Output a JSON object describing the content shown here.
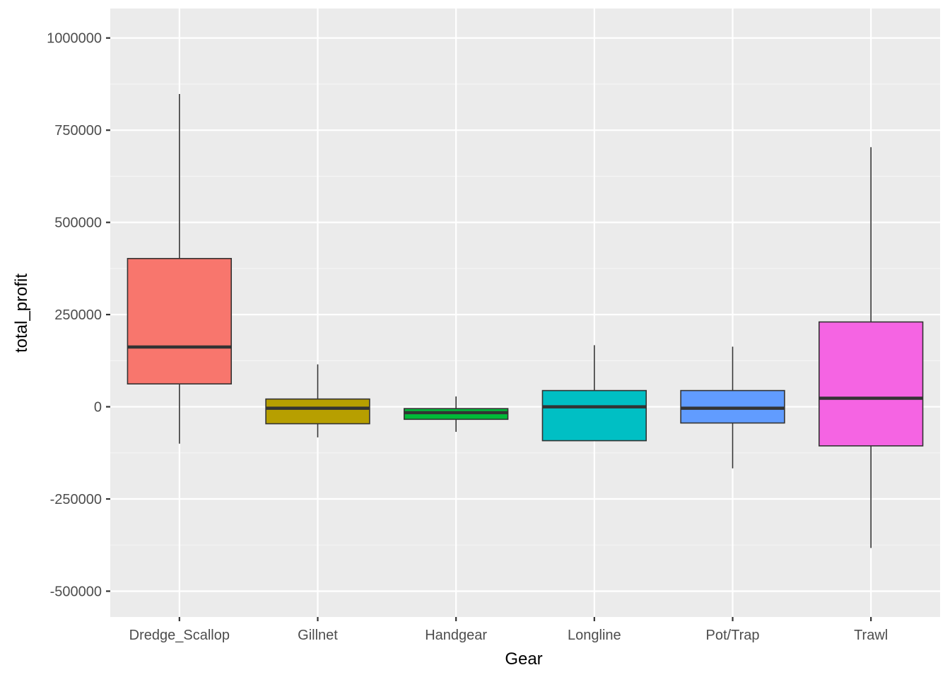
{
  "chart_data": {
    "type": "boxplot",
    "xlabel": "Gear",
    "ylabel": "total_profit",
    "ylim": [
      -570000,
      1080000
    ],
    "y_ticks": [
      -500000,
      -250000,
      0,
      250000,
      500000,
      750000,
      1000000
    ],
    "y_tick_labels": [
      "-500000",
      "-250000",
      "0",
      "250000",
      "500000",
      "750000",
      "1000000"
    ],
    "grid": true,
    "legend": "none",
    "categories": [
      "Dredge_Scallop",
      "Gillnet",
      "Handgear",
      "Longline",
      "Pot/Trap",
      "Trawl"
    ],
    "boxes": [
      {
        "category": "Dredge_Scallop",
        "whisker_low": -100000,
        "q1": 62000,
        "median": 162000,
        "q3": 402000,
        "whisker_high": 848000,
        "color": "#F8766D"
      },
      {
        "category": "Gillnet",
        "whisker_low": -83000,
        "q1": -46000,
        "median": -4000,
        "q3": 21000,
        "whisker_high": 115000,
        "color": "#B79F00"
      },
      {
        "category": "Handgear",
        "whisker_low": -68000,
        "q1": -34000,
        "median": -16000,
        "q3": -5000,
        "whisker_high": 28000,
        "color": "#00BA38"
      },
      {
        "category": "Longline",
        "whisker_low": -92000,
        "q1": -92000,
        "median": 0,
        "q3": 44000,
        "whisker_high": 167000,
        "color": "#00BFC4"
      },
      {
        "category": "Pot/Trap",
        "whisker_low": -167000,
        "q1": -44000,
        "median": -4000,
        "q3": 44000,
        "whisker_high": 163000,
        "color": "#619CFF"
      },
      {
        "category": "Trawl",
        "whisker_low": -383000,
        "q1": -106000,
        "median": 23000,
        "q3": 230000,
        "whisker_high": 704000,
        "color": "#F564E3"
      }
    ]
  },
  "colors": {
    "panel_background": "#EBEBEB",
    "grid_major": "#FFFFFF",
    "grid_minor": "#F5F5F5",
    "box_outline": "#333333",
    "tick_text": "#4D4D4D"
  }
}
